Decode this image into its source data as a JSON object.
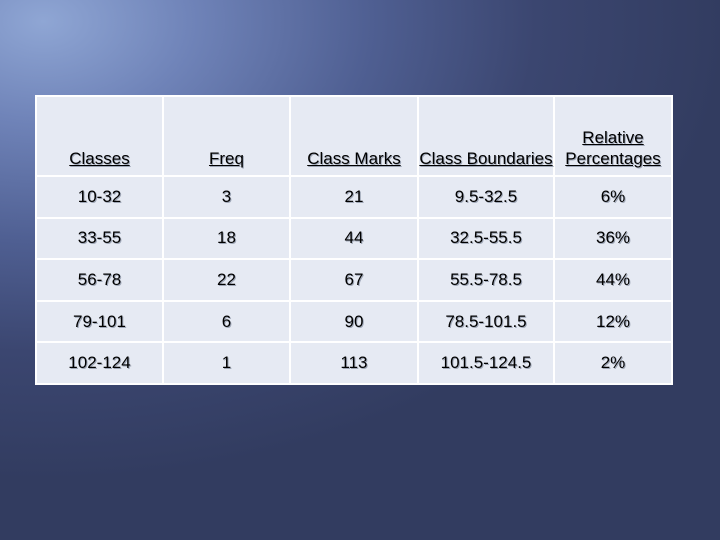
{
  "table": {
    "headers": [
      "Classes",
      "Freq",
      "Class Marks",
      "Class Boundaries",
      "Relative Percentages"
    ],
    "rows": [
      [
        "10-32",
        "3",
        "21",
        "9.5-32.5",
        "6%"
      ],
      [
        "33-55",
        "18",
        "44",
        "32.5-55.5",
        "36%"
      ],
      [
        "56-78",
        "22",
        "67",
        "55.5-78.5",
        "44%"
      ],
      [
        "79-101",
        "6",
        "90",
        "78.5-101.5",
        "12%"
      ],
      [
        "102-124",
        "1",
        "113",
        "101.5-124.5",
        "2%"
      ]
    ]
  },
  "colors": {
    "background_light": "#8fa6d4",
    "background_dark": "#323c60",
    "cell_fill": "#e6eaf3",
    "grid_lines": "#ffffff"
  }
}
